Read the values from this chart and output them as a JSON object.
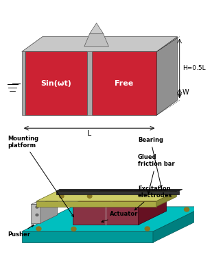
{
  "bg_color": "#ffffff",
  "top_diagram": {
    "red_color": "#cc2233",
    "gray_top": "#c0c0c0",
    "gray_right": "#999999",
    "gray_border": "#aaaaaa",
    "label_sin": "Sin(ωt)",
    "label_free": "Free",
    "label_L": "L",
    "label_H": "H=0.5L",
    "label_W": "W"
  },
  "bottom_diagram": {
    "teal_top": "#00bfbf",
    "teal_front": "#009999",
    "teal_right": "#007f7f",
    "yellow_top": "#cccc66",
    "yellow_front": "#aaaa44",
    "yellow_right": "#888833",
    "red_top": "#aa2233",
    "red_front": "#883344",
    "red_right": "#661122",
    "gray_pusher": "#bbbbbb",
    "gray_pusher_top": "#dddddd",
    "black": "#111111",
    "dark_bar": "#1a1a1a",
    "hole_color": "#887722",
    "post_color": "#aaaa44",
    "labels": {
      "mounting_platform": "Mounting\nplatform",
      "bearing": "Bearing",
      "glued_friction_bar": "Glued\nfriction bar",
      "excitation_electrodes": "Excitation\nelectrodes",
      "actuator": "Actuator",
      "pusher": "Pusher"
    }
  }
}
